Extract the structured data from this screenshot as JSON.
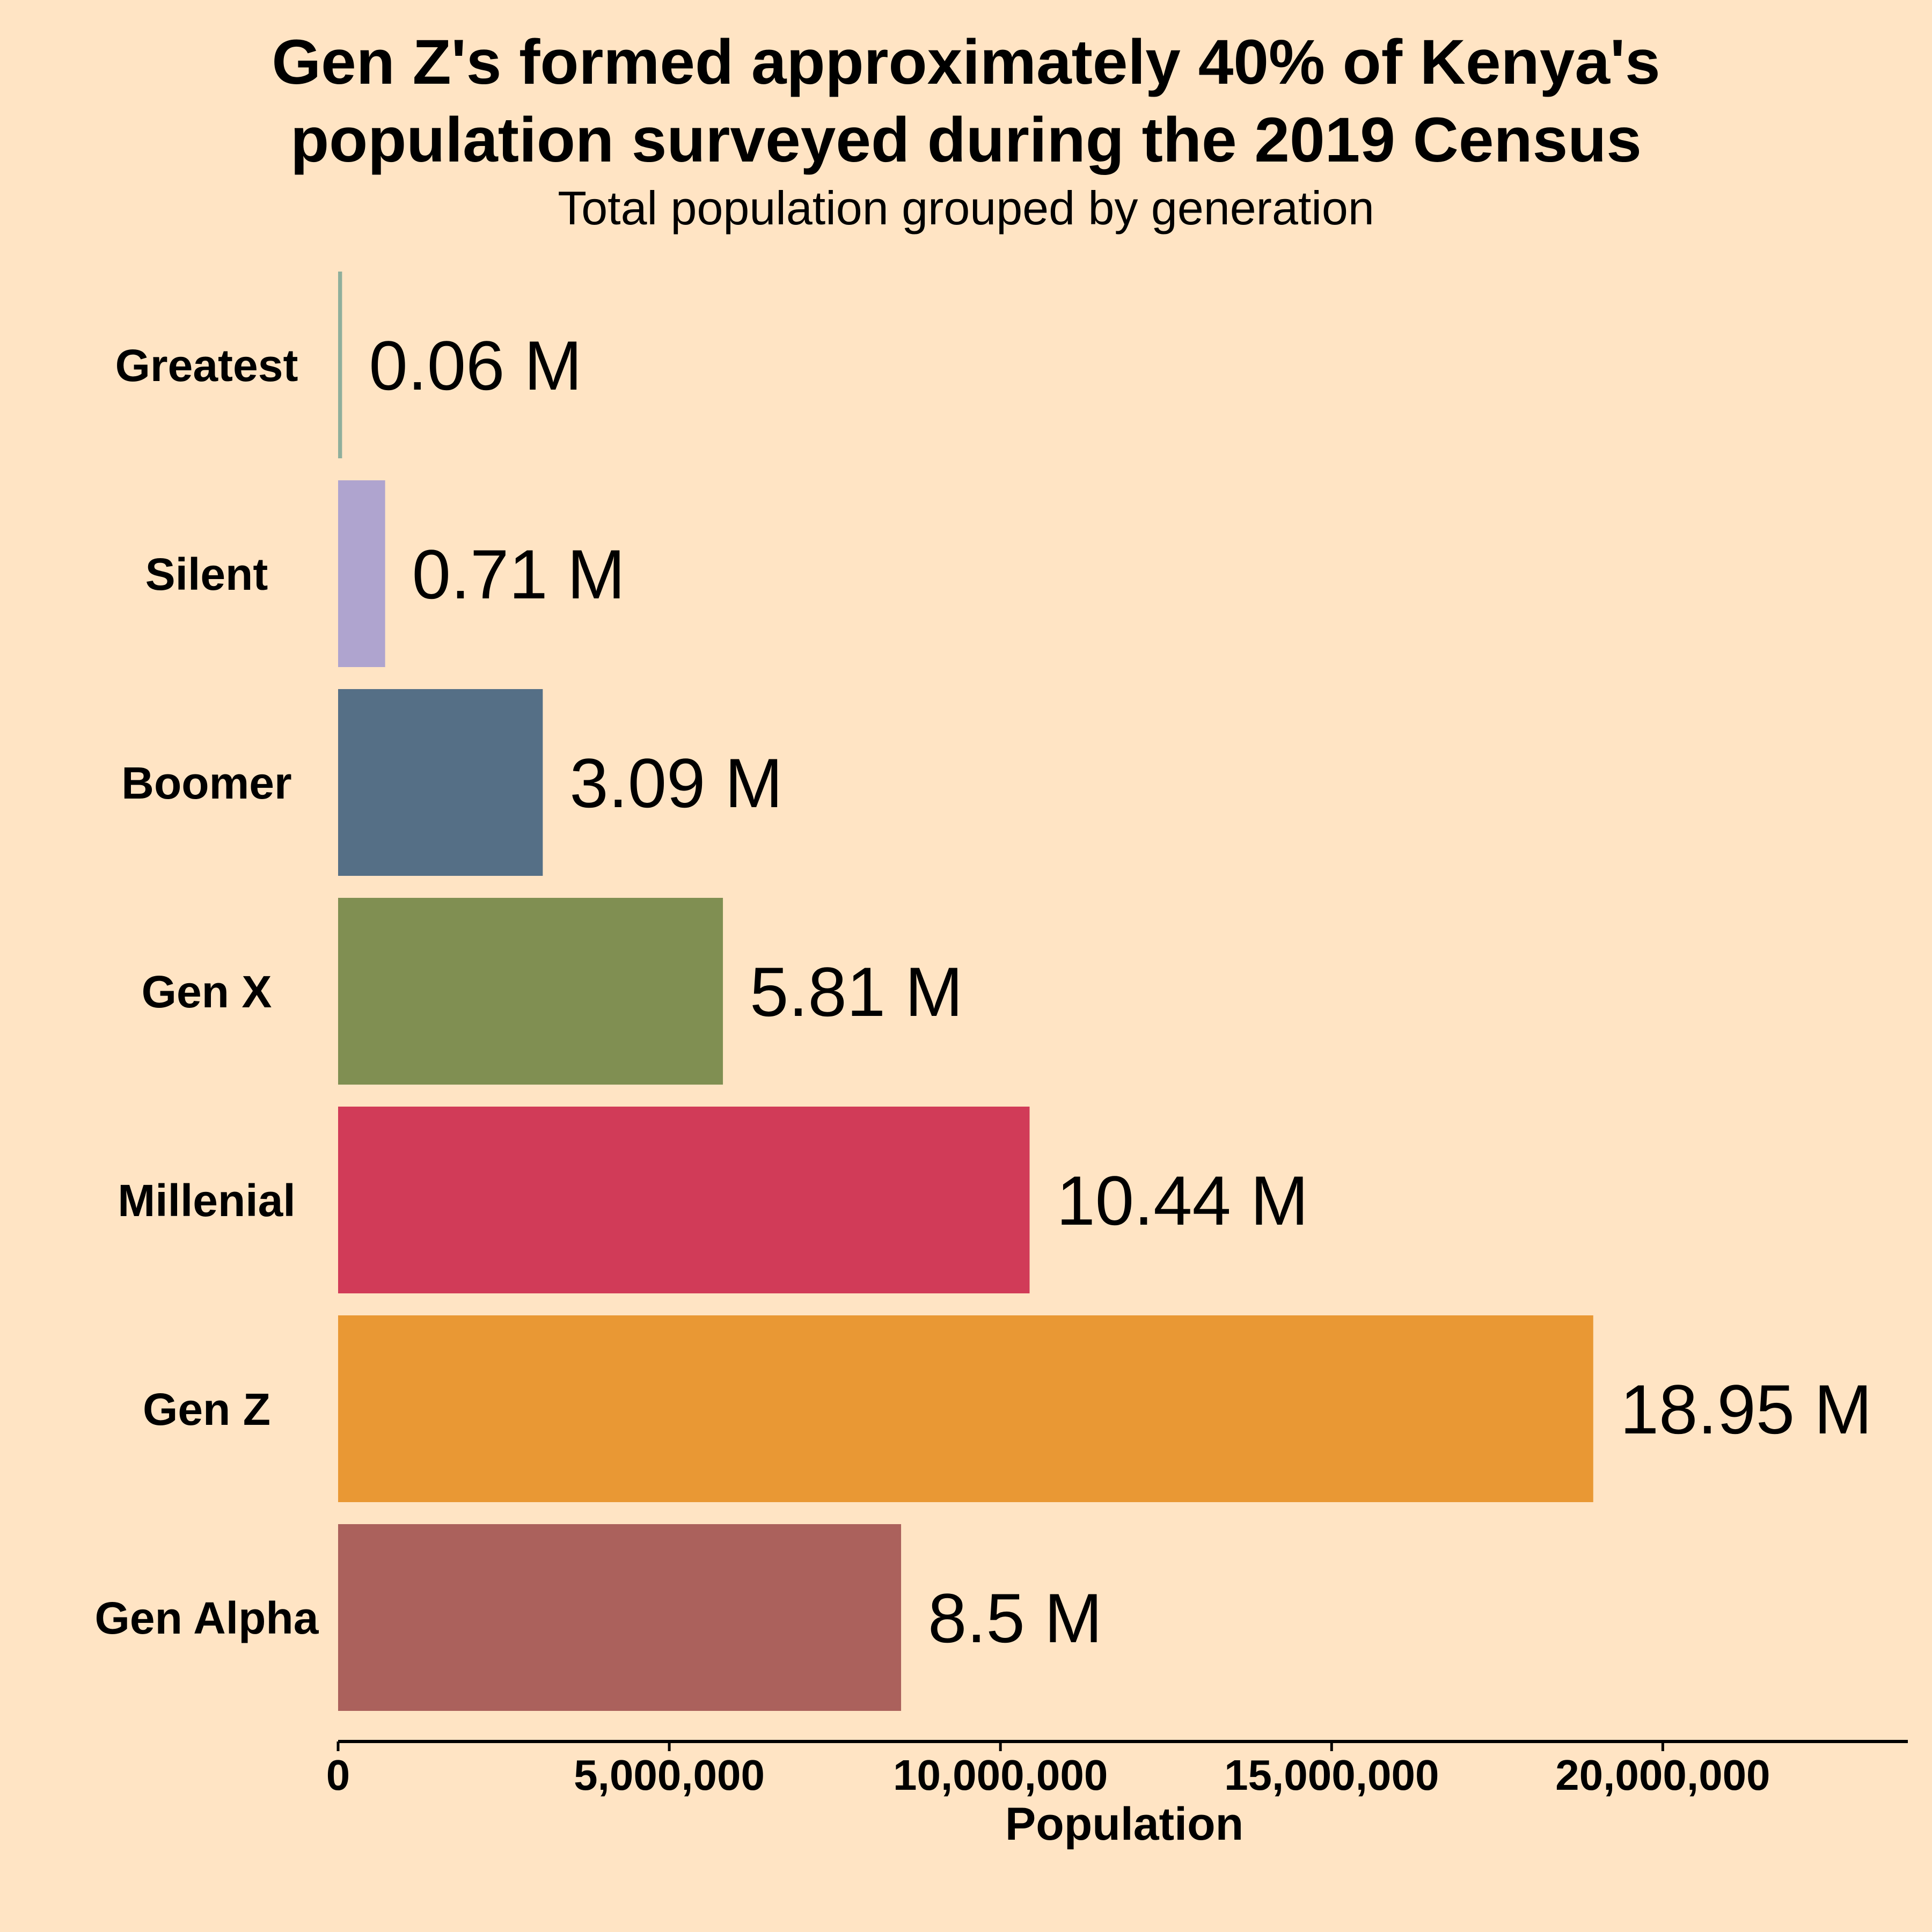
{
  "chart_data": {
    "type": "bar",
    "orientation": "horizontal",
    "title": "Gen Z's formed approximately 40% of Kenya's population surveyed during the 2019 Census",
    "title_lines": [
      "Gen Z's formed approximately 40% of Kenya's",
      "population surveyed during the 2019 Census"
    ],
    "subtitle": "Total population grouped by generation",
    "xlabel": "Population",
    "ylabel": "",
    "xlim": [
      0,
      23700000
    ],
    "x_ticks": [
      0,
      5000000,
      10000000,
      15000000,
      20000000
    ],
    "x_tick_labels": [
      "0",
      "5,000,000",
      "10,000,000",
      "15,000,000",
      "20,000,000"
    ],
    "grid": false,
    "legend": "none",
    "categories": [
      "Greatest",
      "Silent",
      "Boomer",
      "Gen X",
      "Millenial",
      "Gen Z",
      "Gen Alpha"
    ],
    "values": [
      60000,
      710000,
      3090000,
      5810000,
      10440000,
      18950000,
      8500000
    ],
    "value_labels": [
      "0.06 M",
      "0.71 M",
      "3.09 M",
      "5.81 M",
      "10.44 M",
      "18.95 M",
      "8.5 M"
    ],
    "colors": [
      "#8FAF9C",
      "#AFA4CF",
      "#556F86",
      "#808F52",
      "#D13B58",
      "#E99834",
      "#AB615C"
    ]
  }
}
